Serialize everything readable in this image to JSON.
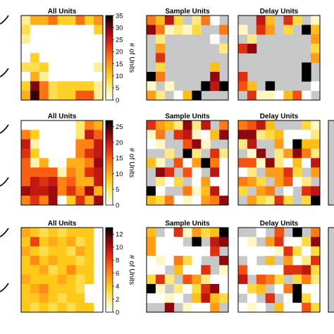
{
  "colorscale": {
    "name": "hot-reversed",
    "stops": [
      "#ffffff",
      "#fff5b8",
      "#ffe566",
      "#ffcc1a",
      "#ffa319",
      "#ff7a14",
      "#f24a10",
      "#d42513",
      "#a80a10",
      "#5a0708",
      "#000000"
    ],
    "empty_color": "#c8c8c8"
  },
  "chart_data": [
    {
      "type": "heatmap",
      "title": "All Units",
      "colorbar": {
        "label": "# of Units",
        "max": 35,
        "ticks": [
          0,
          5,
          10,
          15,
          20,
          25,
          30,
          35
        ]
      },
      "cells": [
        [
          5,
          13,
          13,
          18,
          10,
          10,
          18,
          10,
          15
        ],
        [
          8,
          0,
          0,
          0,
          0,
          0,
          0,
          0,
          10
        ],
        [
          5,
          0,
          0,
          0,
          0,
          0,
          0,
          0,
          0
        ],
        [
          0,
          0,
          0,
          0,
          0,
          0,
          0,
          0,
          0
        ],
        [
          0,
          10,
          0,
          0,
          0,
          0,
          0,
          0,
          0
        ],
        [
          8,
          8,
          10,
          0,
          0,
          0,
          0,
          0,
          5
        ],
        [
          0,
          13,
          5,
          0,
          0,
          0,
          0,
          0,
          0
        ],
        [
          10,
          30,
          18,
          8,
          10,
          10,
          10,
          10,
          5
        ],
        [
          13,
          33,
          18,
          8,
          10,
          10,
          20,
          20,
          5
        ]
      ]
    },
    {
      "type": "heatmap",
      "title": "Sample Units",
      "cells": [
        [
          null,
          null,
          null,
          null,
          null,
          null,
          null,
          null,
          null
        ],
        [
          null,
          null,
          null,
          null,
          null,
          null,
          null,
          null,
          null
        ],
        [
          null,
          null,
          null,
          null,
          null,
          null,
          null,
          null,
          null
        ],
        [
          null,
          null,
          null,
          null,
          null,
          null,
          null,
          null,
          null
        ],
        [
          null,
          null,
          null,
          null,
          null,
          null,
          null,
          null,
          null
        ],
        [
          null,
          null,
          null,
          null,
          null,
          null,
          null,
          null,
          null
        ],
        [
          null,
          null,
          null,
          null,
          null,
          null,
          null,
          null,
          null
        ],
        [
          null,
          null,
          null,
          null,
          null,
          null,
          null,
          null,
          null
        ],
        [
          null,
          null,
          null,
          null,
          null,
          null,
          null,
          null,
          null
        ]
      ]
    },
    {
      "type": "heatmap",
      "title": "Delay Units",
      "cells": []
    },
    {
      "type": "heatmap",
      "title": "All Units",
      "colorbar": {
        "label": "# of Units",
        "max": 27,
        "ticks": [
          0,
          5,
          10,
          15,
          20,
          25
        ]
      },
      "cells": [
        [
          0,
          0,
          0,
          0,
          0,
          0,
          5,
          13,
          10
        ],
        [
          13,
          8,
          0,
          0,
          0,
          0,
          5,
          20,
          15
        ],
        [
          20,
          3,
          0,
          0,
          0,
          0,
          13,
          13,
          20
        ],
        [
          18,
          8,
          0,
          0,
          0,
          0,
          13,
          18,
          20
        ],
        [
          15,
          3,
          10,
          0,
          0,
          10,
          10,
          13,
          22
        ],
        [
          15,
          15,
          15,
          15,
          3,
          13,
          10,
          18,
          20
        ],
        [
          15,
          20,
          18,
          20,
          13,
          15,
          10,
          10,
          20
        ],
        [
          22,
          20,
          20,
          22,
          13,
          18,
          13,
          22,
          10
        ],
        [
          13,
          18,
          13,
          22,
          0,
          8,
          18,
          10,
          22
        ]
      ]
    },
    {
      "type": "heatmap",
      "title": "Sample Units",
      "cells": []
    },
    {
      "type": "heatmap",
      "title": "Delay Units",
      "cells": []
    },
    {
      "type": "heatmap",
      "title": "All Units",
      "colorbar": {
        "label": "# of Units",
        "max": 13,
        "ticks": [
          0,
          2,
          4,
          6,
          8,
          10,
          12
        ]
      },
      "cells": [
        [
          5,
          4,
          3,
          4,
          3,
          4,
          4,
          4,
          0
        ],
        [
          4,
          8,
          4,
          5,
          4,
          5,
          3,
          4,
          0
        ],
        [
          5,
          4,
          3,
          4,
          4,
          3,
          5,
          4,
          0
        ],
        [
          4,
          6,
          4,
          5,
          4,
          4,
          3,
          4,
          0
        ],
        [
          4,
          4,
          5,
          3,
          4,
          6,
          4,
          4,
          0
        ],
        [
          5,
          4,
          4,
          4,
          5,
          4,
          3,
          4,
          0
        ],
        [
          4,
          5,
          6,
          4,
          4,
          4,
          3,
          0,
          0
        ],
        [
          4,
          4,
          5,
          4,
          3,
          4,
          4,
          0,
          0
        ],
        [
          4,
          3,
          4,
          3,
          4,
          3,
          4,
          4,
          0
        ]
      ]
    },
    {
      "type": "heatmap",
      "title": "Sample Units",
      "cells": []
    },
    {
      "type": "heatmap",
      "title": "Delay Units",
      "cells": []
    }
  ],
  "left_marks": [
    {
      "y": 28
    },
    {
      "y": 103
    },
    {
      "y": 183
    },
    {
      "y": 258
    },
    {
      "y": 330
    },
    {
      "y": 408
    }
  ]
}
